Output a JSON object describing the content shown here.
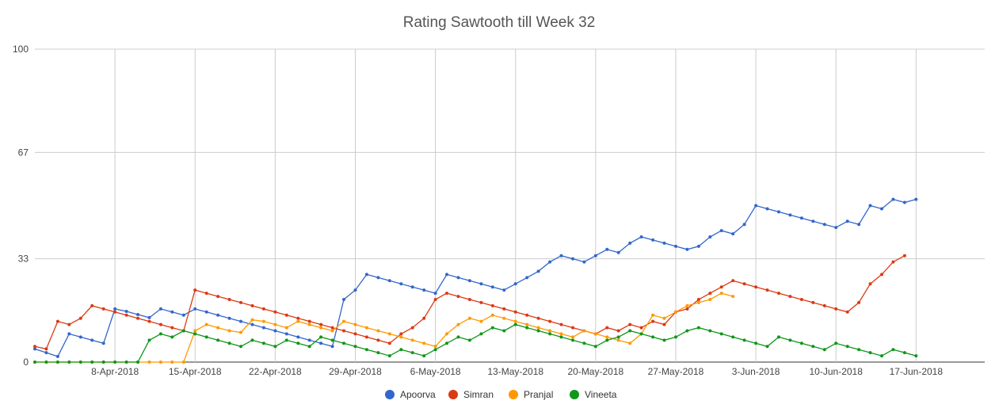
{
  "chart_data": {
    "type": "line",
    "title": "Rating Sawtooth till Week 32",
    "x_start": "2018-04-01",
    "x_range": [
      "2018-04-01",
      "2018-06-23"
    ],
    "y_range": [
      0,
      100
    ],
    "y_ticks": [
      0,
      33,
      67,
      100
    ],
    "x_tick_labels": [
      "8-Apr-2018",
      "15-Apr-2018",
      "22-Apr-2018",
      "29-Apr-2018",
      "6-May-2018",
      "13-May-2018",
      "20-May-2018",
      "27-May-2018",
      "3-Jun-2018",
      "10-Jun-2018",
      "17-Jun-2018"
    ],
    "grid": true,
    "legend_position": "bottom",
    "series": [
      {
        "name": "Apoorva",
        "color": "#3366cc",
        "values": [
          4.2,
          3.0,
          1.8,
          9.0,
          8.0,
          7.0,
          6.0,
          17.0,
          16.2,
          15.2,
          14.2,
          17.0,
          16.0,
          15.0,
          17.0,
          16.0,
          15.0,
          14.0,
          13.0,
          12.0,
          11.0,
          10.0,
          9.0,
          8.0,
          7.0,
          6.0,
          5.0,
          20.0,
          23.0,
          28.0,
          27.0,
          26.0,
          25.0,
          24.0,
          23.0,
          22.0,
          28.0,
          27.0,
          26.0,
          25.0,
          24.0,
          23.0,
          25.0,
          27.0,
          29.0,
          32.0,
          34.0,
          33.0,
          32.0,
          34.0,
          36.0,
          35.0,
          38.0,
          40.0,
          39.0,
          38.0,
          37.0,
          36.0,
          37.0,
          40.0,
          42.0,
          41.0,
          44.0,
          50.0,
          49.0,
          48.0,
          47.0,
          46.0,
          45.0,
          44.0,
          43.0,
          45.0,
          44.0,
          50.0,
          49.0,
          52.0,
          51.0,
          52.0
        ]
      },
      {
        "name": "Simran",
        "color": "#dc3912",
        "values": [
          5.0,
          4.2,
          13.0,
          12.0,
          14.0,
          18.0,
          17.0,
          16.0,
          15.0,
          14.0,
          13.0,
          12.0,
          11.0,
          10.0,
          23.0,
          22.0,
          21.0,
          20.0,
          19.0,
          18.0,
          17.0,
          16.0,
          15.0,
          14.0,
          13.0,
          12.0,
          11.0,
          10.0,
          9.0,
          8.0,
          7.0,
          6.0,
          9.0,
          11.0,
          14.0,
          20.0,
          22.0,
          21.0,
          20.0,
          19.0,
          18.0,
          17.0,
          16.0,
          15.0,
          14.0,
          13.0,
          12.0,
          11.0,
          10.0,
          9.0,
          11.0,
          10.0,
          12.0,
          11.0,
          13.0,
          12.0,
          16.0,
          17.0,
          20.0,
          22.0,
          24.0,
          26.0,
          25.0,
          24.0,
          23.0,
          22.0,
          21.0,
          20.0,
          19.0,
          18.0,
          17.0,
          16.0,
          19.0,
          25.0,
          28.0,
          32.0,
          34.0
        ]
      },
      {
        "name": "Pranjal",
        "color": "#ff9900",
        "values": [
          0,
          0,
          0,
          0,
          0,
          0,
          0,
          0,
          0,
          0,
          0,
          0,
          0,
          0,
          10.0,
          12.0,
          11.0,
          10.0,
          9.5,
          13.5,
          13.0,
          12.0,
          11.0,
          13.0,
          12.0,
          11.0,
          10.0,
          13.0,
          12.0,
          11.0,
          10.0,
          9.0,
          8.0,
          7.0,
          6.0,
          5.0,
          9.0,
          12.0,
          14.0,
          13.0,
          15.0,
          14.0,
          13.0,
          12.0,
          11.0,
          10.0,
          9.0,
          8.0,
          10.0,
          9.0,
          8.0,
          7.0,
          6.0,
          9.0,
          15.0,
          14.0,
          16.0,
          18.0,
          19.0,
          20.0,
          22.0,
          21.0
        ]
      },
      {
        "name": "Vineeta",
        "color": "#109618",
        "values": [
          0,
          0,
          0,
          0,
          0,
          0,
          0,
          0,
          0,
          0,
          7.0,
          9.0,
          8.0,
          10.0,
          9.0,
          8.0,
          7.0,
          6.0,
          5.0,
          7.0,
          6.0,
          5.0,
          7.0,
          6.0,
          5.0,
          8.0,
          7.0,
          6.0,
          5.0,
          4.0,
          3.0,
          2.0,
          4.0,
          3.0,
          2.0,
          4.0,
          6.0,
          8.0,
          7.0,
          9.0,
          11.0,
          10.0,
          12.0,
          11.0,
          10.0,
          9.0,
          8.0,
          7.0,
          6.0,
          5.0,
          7.0,
          8.0,
          10.0,
          9.0,
          8.0,
          7.0,
          8.0,
          10.0,
          11.0,
          10.0,
          9.0,
          8.0,
          7.0,
          6.0,
          5.0,
          8.0,
          7.0,
          6.0,
          5.0,
          4.0,
          6.0,
          5.0,
          4.0,
          3.0,
          2.0,
          4.0,
          3.0,
          2.0
        ]
      }
    ]
  }
}
